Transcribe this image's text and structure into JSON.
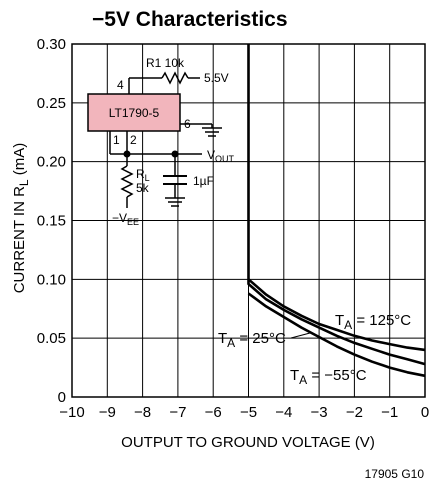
{
  "chart_data": {
    "type": "line",
    "title": "−5V Characteristics",
    "xlabel": "OUTPUT TO GROUND VOLTAGE (V)",
    "ylabel_main": "CURRENT IN R",
    "ylabel_sub": "L",
    "ylabel_unit": " (mA)",
    "xlim": [
      -10,
      0
    ],
    "ylim": [
      0,
      0.3
    ],
    "x_ticks": [
      "−10",
      "−9",
      "−8",
      "−7",
      "−6",
      "−5",
      "−4",
      "−3",
      "−2",
      "−1",
      "0"
    ],
    "y_ticks": [
      "0",
      "0.05",
      "0.10",
      "0.15",
      "0.20",
      "0.25",
      "0.30"
    ],
    "grid": true,
    "series": [
      {
        "label_main": "T",
        "label_sub": "A",
        "label_rest": " = 25°C",
        "x": [
          -5,
          -5,
          -4.5,
          -4,
          -3.5,
          -3,
          -2.5,
          -2,
          -1.5,
          -1,
          -0.5,
          0
        ],
        "y": [
          0.3,
          0.096,
          0.083,
          0.074,
          0.066,
          0.059,
          0.052,
          0.046,
          0.041,
          0.036,
          0.032,
          0.028
        ]
      },
      {
        "label_main": "T",
        "label_sub": "A",
        "label_rest": " = 125°C",
        "x": [
          -5,
          -4.5,
          -4,
          -3.5,
          -3,
          -2.5,
          -2,
          -1.5,
          -1,
          -0.5,
          0
        ],
        "y": [
          0.1,
          0.087,
          0.077,
          0.069,
          0.062,
          0.057,
          0.052,
          0.048,
          0.045,
          0.042,
          0.04
        ]
      },
      {
        "label_main": "T",
        "label_sub": "A",
        "label_rest": " = −55°C",
        "x": [
          -5,
          -4.5,
          -4,
          -3.5,
          -3,
          -2.5,
          -2,
          -1.5,
          -1,
          -0.5,
          0
        ],
        "y": [
          0.088,
          0.077,
          0.068,
          0.059,
          0.051,
          0.043,
          0.036,
          0.03,
          0.025,
          0.021,
          0.018
        ]
      }
    ],
    "inset_schematic": {
      "ic_label": "LT1790-5",
      "pins": [
        "4",
        "6",
        "1",
        "2"
      ],
      "resistor_top_label": "R1 10k",
      "supply_label": "5.5V",
      "vout_main": "V",
      "vout_sub": "OUT",
      "rl_main": "R",
      "rl_sub": "L",
      "rl_value": "5k",
      "cap_label": "1µF",
      "vee_main": "−V",
      "vee_sub": "EE"
    },
    "figure_id": "17905 G10"
  },
  "colors": {
    "ic_fill": "#f2b5bc",
    "line": "#000000"
  }
}
